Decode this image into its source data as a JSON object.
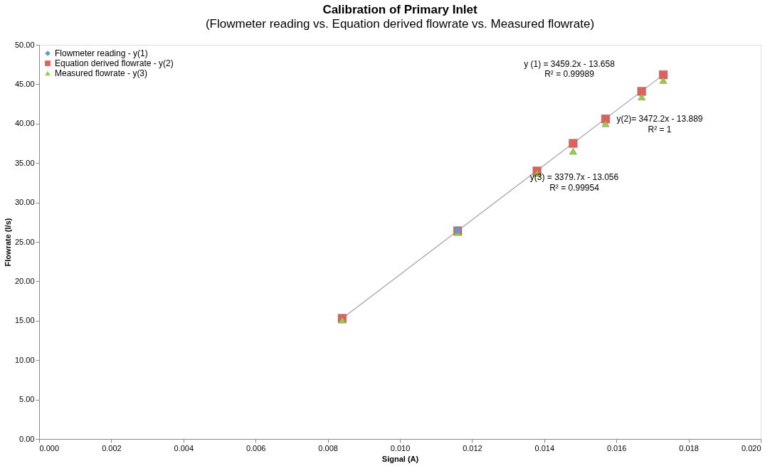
{
  "chart_data": {
    "type": "scatter",
    "title": "Calibration of Primary Inlet",
    "subtitle": "(Flowmeter reading vs. Equation derived flowrate vs. Measured flowrate)",
    "xlabel": "Signal (A)",
    "ylabel": "Flowrate (l/s)",
    "x": [
      0.0084,
      0.0116,
      0.0138,
      0.0148,
      0.0157,
      0.0167,
      0.0173
    ],
    "series": [
      {
        "name": "Flowmeter reading - y(1)",
        "color": "#5b9bd5",
        "marker": "diamond",
        "values": [
          null,
          26.5,
          null,
          null,
          null,
          null,
          null
        ]
      },
      {
        "name": "Equation derived flowrate - y(2)",
        "color": "#e0605c",
        "marker": "square",
        "values": [
          15.3,
          26.4,
          34.0,
          37.5,
          40.6,
          44.1,
          46.2
        ]
      },
      {
        "name": "Measured flowrate - y(3)",
        "color": "#9bc848",
        "marker": "triangle",
        "values": [
          15.1,
          26.2,
          33.7,
          36.5,
          40.0,
          43.4,
          45.5
        ]
      },
      {
        "type": "line",
        "color": "#a0a0a0",
        "x": [
          0.0084,
          0.0173
        ],
        "values": [
          15.3,
          46.2
        ]
      }
    ],
    "annotations": [
      "y (1) = 3459.2x - 13.658",
      "R² = 0.99989",
      "y(2)= 3472.2x - 13.889",
      "R² = 1",
      "y(3) = 3379.7x - 13.056",
      "R² = 0.99954"
    ],
    "xlim": [
      0,
      0.02
    ],
    "xticks": [
      {
        "value": 0,
        "label": "0.000"
      },
      {
        "value": 0.002,
        "label": "0.002"
      },
      {
        "value": 0.004,
        "label": "0.004"
      },
      {
        "value": 0.006,
        "label": "0.006"
      },
      {
        "value": 0.008,
        "label": "0.008"
      },
      {
        "value": 0.01,
        "label": "0.010"
      },
      {
        "value": 0.012,
        "label": "0.012"
      },
      {
        "value": 0.014,
        "label": "0.014"
      },
      {
        "value": 0.016,
        "label": "0.016"
      },
      {
        "value": 0.018,
        "label": "0.018"
      },
      {
        "value": 0.02,
        "label": "0.020"
      }
    ],
    "ylim": [
      0,
      50
    ],
    "yticks": [
      {
        "value": 0,
        "label": "0.00"
      },
      {
        "value": 5,
        "label": "5.00"
      },
      {
        "value": 10,
        "label": "10.00"
      },
      {
        "value": 15,
        "label": "15.00"
      },
      {
        "value": 20,
        "label": "20.00"
      },
      {
        "value": 25,
        "label": "25.00"
      },
      {
        "value": 30,
        "label": "30.00"
      },
      {
        "value": 35,
        "label": "35.00"
      },
      {
        "value": 40,
        "label": "40.00"
      },
      {
        "value": 45,
        "label": "45.00"
      },
      {
        "value": 50,
        "label": "50.00"
      }
    ],
    "grid": false,
    "legend": "top left"
  }
}
